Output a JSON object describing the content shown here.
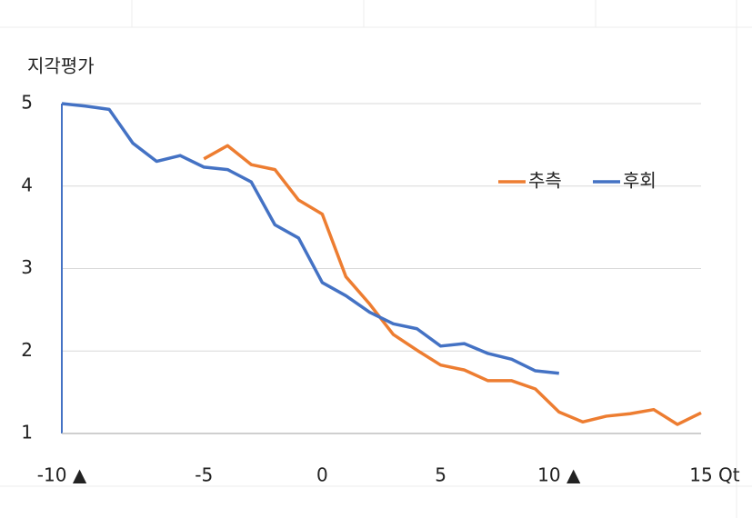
{
  "chart_data": {
    "type": "line",
    "y_label": "지각평가",
    "x_label": "Qt",
    "categories": [
      "-10 ▲",
      null,
      null,
      null,
      null,
      null,
      "-5",
      null,
      null,
      null,
      null,
      "0",
      null,
      null,
      null,
      null,
      "5",
      null,
      null,
      null,
      null,
      "10 ▲",
      null,
      null,
      null,
      null,
      null,
      "15"
    ],
    "series": [
      {
        "name": "추측",
        "color": "#ed7d31",
        "values": [
          null,
          null,
          null,
          null,
          null,
          null,
          4.33,
          4.49,
          4.26,
          4.2,
          3.83,
          3.66,
          2.9,
          2.57,
          2.2,
          2.01,
          1.83,
          1.77,
          1.64,
          1.64,
          1.54,
          1.26,
          1.14,
          1.21,
          1.24,
          1.29,
          1.11,
          1.25
        ]
      },
      {
        "name": "후회",
        "color": "#4472c4",
        "values": [
          5.0,
          4.97,
          4.93,
          4.52,
          4.3,
          4.37,
          4.23,
          4.2,
          4.05,
          3.53,
          3.37,
          2.83,
          2.67,
          2.47,
          2.33,
          2.27,
          2.06,
          2.09,
          1.97,
          1.9,
          1.76,
          1.73,
          null,
          null,
          null,
          null,
          null,
          null
        ]
      }
    ],
    "ylim": [
      1,
      5
    ],
    "yticks": [
      1,
      2,
      3,
      4,
      5
    ],
    "grid": true,
    "legend": "right"
  }
}
